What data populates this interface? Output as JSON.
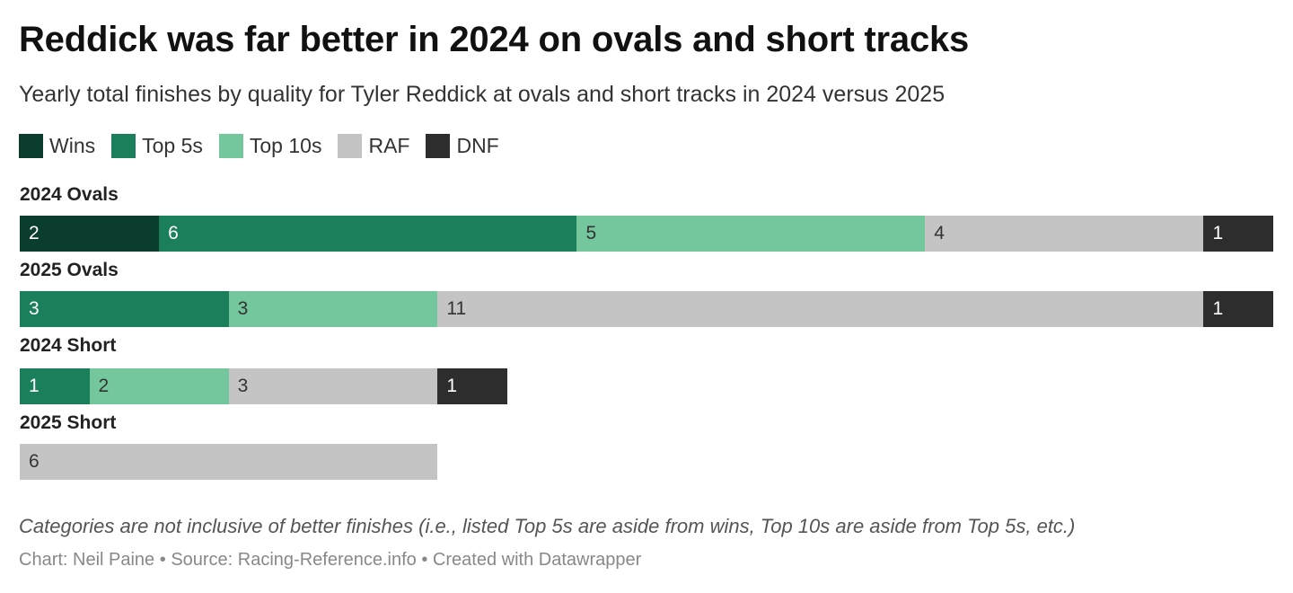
{
  "title": "Reddick was far better in 2024 on ovals and short tracks",
  "subtitle": "Yearly total finishes by quality for Tyler Reddick at ovals and short tracks in 2024 versus 2025",
  "legend": [
    {
      "label": "Wins",
      "color": "#0b3d2e"
    },
    {
      "label": "Top 5s",
      "color": "#1b7f5b"
    },
    {
      "label": "Top 10s",
      "color": "#74c69d"
    },
    {
      "label": "RAF",
      "color": "#c4c4c4"
    },
    {
      "label": "DNF",
      "color": "#2d2d2d"
    }
  ],
  "chart_data": {
    "type": "bar",
    "orientation": "horizontal",
    "stacked": true,
    "categories": [
      "2024 Ovals",
      "2025 Ovals",
      "2024 Short",
      "2025 Short"
    ],
    "series": [
      {
        "name": "Wins",
        "color": "#0b3d2e",
        "values": [
          2,
          0,
          0,
          0
        ]
      },
      {
        "name": "Top 5s",
        "color": "#1b7f5b",
        "values": [
          6,
          3,
          1,
          0
        ]
      },
      {
        "name": "Top 10s",
        "color": "#74c69d",
        "values": [
          5,
          3,
          2,
          0
        ]
      },
      {
        "name": "RAF",
        "color": "#c4c4c4",
        "values": [
          4,
          11,
          3,
          6
        ]
      },
      {
        "name": "DNF",
        "color": "#2d2d2d",
        "values": [
          1,
          1,
          1,
          0
        ]
      }
    ],
    "xlim": [
      0,
      18
    ]
  },
  "notes": "Categories are not inclusive of better finishes (i.e., listed Top 5s are aside from wins, Top 10s are aside from Top 5s, etc.)",
  "footer": {
    "chart_credit": "Chart: Neil Paine",
    "source": "Source: Racing-Reference.info",
    "tool": "Created with Datawrapper",
    "separator": " • "
  }
}
